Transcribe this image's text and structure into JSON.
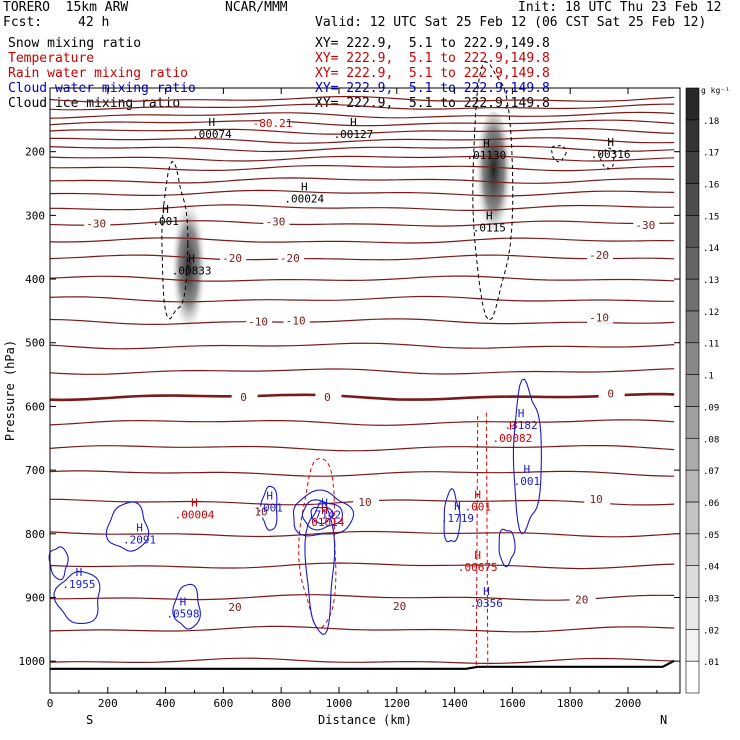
{
  "header": {
    "model": "TORERO  15km ARW",
    "fcst_label": "Fcst:",
    "fcst_value": "42 h",
    "center": "NCAR/MMM",
    "init": "Init: 18 UTC Thu 23 Feb 12",
    "valid": "Valid: 12 UTC Sat 25 Feb 12 (06 CST Sat 25 Feb 12)"
  },
  "fields": [
    {
      "name": "Snow mixing ratio",
      "xy": "XY= 222.9,  5.1 to 222.9,149.8",
      "color": "#000000"
    },
    {
      "name": "Temperature",
      "xy": "XY= 222.9,  5.1 to 222.9,149.8",
      "color": "#cc0000"
    },
    {
      "name": "Rain water mixing ratio",
      "xy": "XY= 222.9,  5.1 to 222.9,149.8",
      "color": "#cc0000"
    },
    {
      "name": "Cloud water mixing ratio",
      "xy": "XY= 222.9,  5.1 to 222.9,149.8",
      "color": "#0000cc"
    },
    {
      "name": "Cloud ice mixing ratio",
      "xy": "XY= 222.9,  5.1 to 222.9,149.8",
      "color": "#000000"
    }
  ],
  "chart_data": {
    "type": "cross-section",
    "xlabel": "Distance (km)",
    "ylabel": "Pressure (hPa)",
    "xlim": [
      0,
      2180
    ],
    "ylim": [
      1050,
      100
    ],
    "x_ticks": [
      0,
      200,
      400,
      600,
      800,
      1000,
      1200,
      1400,
      1600,
      1800,
      2000
    ],
    "y_ticks": [
      200,
      300,
      400,
      500,
      600,
      700,
      800,
      900,
      1000
    ],
    "left_end": "S",
    "right_end": "N",
    "colorbar": {
      "unit": "g kg⁻¹",
      "ticks": [
        ".01",
        ".02",
        ".03",
        ".04",
        ".05",
        ".06",
        ".07",
        ".08",
        ".09",
        ".1",
        ".11",
        ".12",
        ".13",
        ".14",
        ".15",
        ".16",
        ".17",
        ".18"
      ]
    },
    "temperature_labels": [
      {
        "text": "-80.21",
        "x": 770,
        "p": 155,
        "color": "#cc0000"
      },
      {
        "text": "-30",
        "x": 160,
        "p": 313
      },
      {
        "text": "-30",
        "x": 780,
        "p": 310
      },
      {
        "text": "-30",
        "x": 2060,
        "p": 315
      },
      {
        "text": "-20",
        "x": 630,
        "p": 367
      },
      {
        "text": "-20",
        "x": 830,
        "p": 367
      },
      {
        "text": "-20",
        "x": 1900,
        "p": 362
      },
      {
        "text": "-10",
        "x": 720,
        "p": 467
      },
      {
        "text": "-10",
        "x": 850,
        "p": 465
      },
      {
        "text": "-10",
        "x": 1900,
        "p": 460
      },
      {
        "text": "0",
        "x": 670,
        "p": 585
      },
      {
        "text": "0",
        "x": 960,
        "p": 585
      },
      {
        "text": "0",
        "x": 1940,
        "p": 580
      },
      {
        "text": "10",
        "x": 730,
        "p": 765
      },
      {
        "text": "10",
        "x": 1090,
        "p": 750
      },
      {
        "text": "10",
        "x": 1890,
        "p": 745
      },
      {
        "text": "20",
        "x": 640,
        "p": 915
      },
      {
        "text": "20",
        "x": 1210,
        "p": 913
      },
      {
        "text": "20",
        "x": 1840,
        "p": 903
      }
    ],
    "maxima_snow": [
      {
        "text": ".00074",
        "x": 560,
        "p": 175
      },
      {
        "text": ".00127",
        "x": 1050,
        "p": 175
      },
      {
        "text": ".01130",
        "x": 1510,
        "p": 208
      },
      {
        "text": ".00316",
        "x": 1940,
        "p": 207
      },
      {
        "text": ".00024",
        "x": 880,
        "p": 277
      },
      {
        "text": ".001",
        "x": 400,
        "p": 312
      },
      {
        "text": ".0115",
        "x": 1520,
        "p": 322
      },
      {
        "text": ".00833",
        "x": 490,
        "p": 390
      }
    ],
    "maxima_rain": [
      {
        "text": ".00082",
        "x": 1600,
        "p": 653
      },
      {
        "text": ".00004",
        "x": 500,
        "p": 773
      },
      {
        "text": ".01014",
        "x": 950,
        "p": 785
      },
      {
        "text": ".001",
        "x": 1480,
        "p": 760
      },
      {
        "text": ".00675",
        "x": 1480,
        "p": 855
      }
    ],
    "maxima_cloud_water": [
      {
        "text": ".3182",
        "x": 1630,
        "p": 632
      },
      {
        "text": ".001",
        "x": 1650,
        "p": 720
      },
      {
        "text": ".001",
        "x": 760,
        "p": 762
      },
      {
        "text": ".1719",
        "x": 1410,
        "p": 778
      },
      {
        "text": ".7142",
        "x": 950,
        "p": 773
      },
      {
        "text": ".2091",
        "x": 310,
        "p": 812
      },
      {
        "text": ".1955",
        "x": 100,
        "p": 882
      },
      {
        "text": ".0598",
        "x": 460,
        "p": 928
      },
      {
        "text": ".0356",
        "x": 1510,
        "p": 912
      }
    ]
  }
}
